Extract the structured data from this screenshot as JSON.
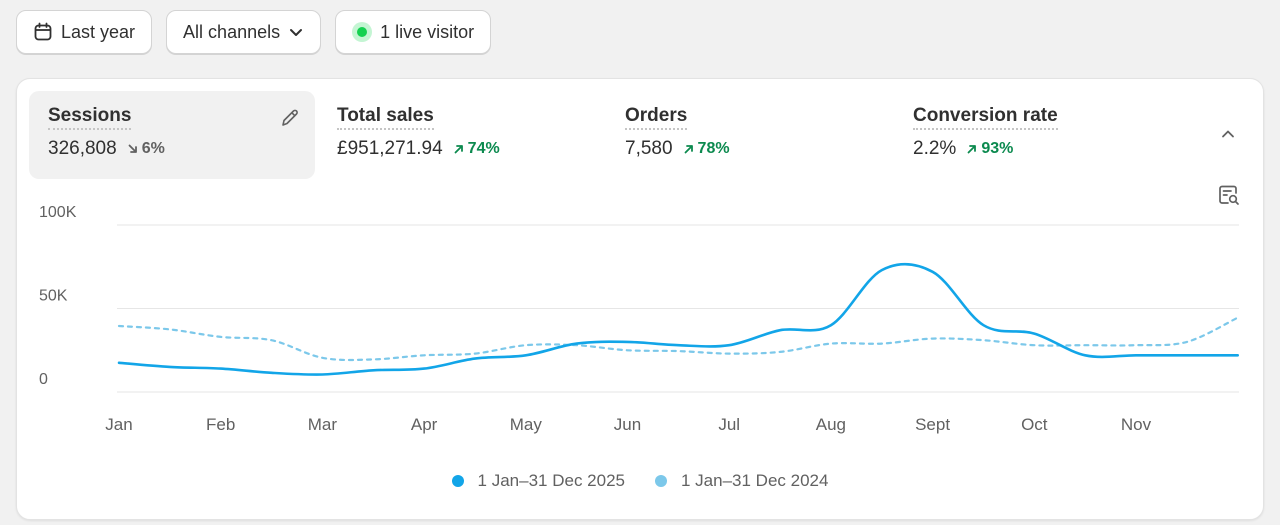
{
  "toolbar": {
    "date_label": "Last year",
    "channels_label": "All channels",
    "live_label": "1 live visitor"
  },
  "metrics": [
    {
      "label": "Sessions",
      "value": "326,808",
      "change": "6%",
      "direction": "down"
    },
    {
      "label": "Total sales",
      "value": "£951,271.94",
      "change": "74%",
      "direction": "up"
    },
    {
      "label": "Orders",
      "value": "7,580",
      "change": "78%",
      "direction": "up"
    },
    {
      "label": "Conversion rate",
      "value": "2.2%",
      "change": "93%",
      "direction": "up"
    }
  ],
  "colors": {
    "current": "#12a5e8",
    "previous": "#7cc8ea",
    "grid": "#e6e6e6",
    "up": "#0c8a4f"
  },
  "chart_data": {
    "type": "line",
    "title": "Sessions",
    "x_labels": [
      "Jan",
      "Feb",
      "Mar",
      "Apr",
      "May",
      "Jun",
      "Jul",
      "Aug",
      "Sept",
      "Oct",
      "Nov"
    ],
    "y_ticks": [
      {
        "value": 0,
        "label": "0"
      },
      {
        "value": 50000,
        "label": "50K"
      },
      {
        "value": 100000,
        "label": "100K"
      }
    ],
    "ylim": [
      0,
      100000
    ],
    "x": [
      0,
      0.5,
      1,
      1.5,
      2,
      2.5,
      3,
      3.5,
      4,
      4.5,
      5,
      5.5,
      6,
      6.5,
      7,
      7.5,
      8,
      8.5,
      9,
      9.5,
      10,
      10.5,
      11
    ],
    "series": [
      {
        "name": "1 Jan–31 Dec 2025",
        "style": "solid",
        "values": [
          17500,
          15000,
          14000,
          11500,
          10500,
          13000,
          14000,
          20000,
          22000,
          29000,
          30000,
          28000,
          28000,
          37000,
          40000,
          73000,
          72000,
          40000,
          35000,
          22000,
          22000,
          22000,
          22000
        ]
      },
      {
        "name": "1 Jan–31 Dec 2024",
        "style": "dashed",
        "values": [
          39500,
          37500,
          33000,
          31000,
          20500,
          19500,
          22000,
          23000,
          28000,
          28000,
          25000,
          24500,
          23000,
          24000,
          29000,
          29000,
          32000,
          31000,
          28000,
          28000,
          28000,
          30000,
          44500
        ]
      }
    ]
  }
}
